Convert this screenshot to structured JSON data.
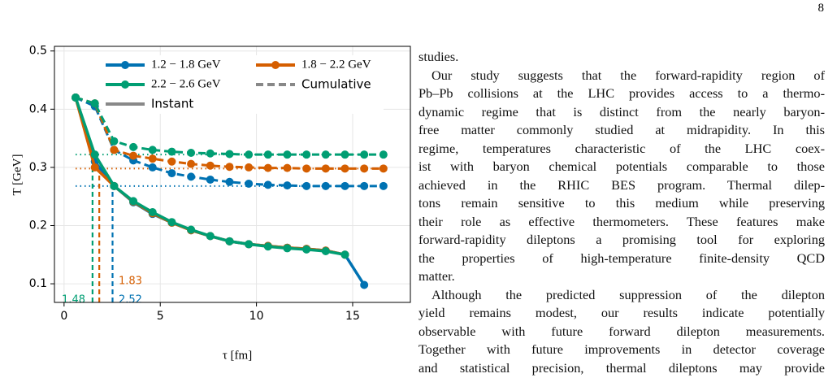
{
  "page_number": "8",
  "chart_data": {
    "type": "line",
    "x_label": "τ [fm]",
    "y_label": "T [GeV]",
    "x": [
      0.6,
      1.6,
      2.6,
      3.6,
      4.6,
      5.6,
      6.6,
      7.6,
      8.6,
      9.6,
      10.6,
      11.6,
      12.6,
      13.6,
      14.6,
      15.6,
      16.6
    ],
    "xlim": [
      -0.5,
      18
    ],
    "xticks": [
      0,
      5,
      10,
      15
    ],
    "ylim": [
      0.068,
      0.508
    ],
    "yticks": [
      0.1,
      0.2,
      0.3,
      0.4,
      0.5
    ],
    "grid": true,
    "legend_styles": {
      "instant": "Instant",
      "cumulative": "Cumulative",
      "color": "#888888"
    },
    "series": [
      {
        "name": "1.2 − 1.8 GeV",
        "color": "#0072b2",
        "instant": [
          0.42,
          0.31,
          0.268,
          0.24,
          0.22,
          0.205,
          0.192,
          0.182,
          0.173,
          0.168,
          0.165,
          0.162,
          0.16,
          0.157,
          0.15,
          0.098,
          null
        ],
        "cumulative": [
          0.42,
          0.405,
          0.33,
          0.312,
          0.3,
          0.29,
          0.284,
          0.279,
          0.275,
          0.272,
          0.27,
          0.269,
          0.268,
          0.268,
          0.268,
          0.268,
          0.268
        ],
        "level": 0.268,
        "crossing": 2.52
      },
      {
        "name": "1.8 − 2.2 GeV",
        "color": "#d55e00",
        "instant": [
          0.42,
          0.3,
          0.268,
          0.241,
          0.221,
          0.205,
          0.192,
          0.182,
          0.173,
          0.168,
          0.165,
          0.162,
          0.16,
          0.157,
          0.15,
          null,
          null
        ],
        "cumulative": [
          0.42,
          0.41,
          0.33,
          0.32,
          0.315,
          0.31,
          0.306,
          0.303,
          0.301,
          0.3,
          0.299,
          0.299,
          0.298,
          0.298,
          0.298,
          0.298,
          0.298
        ],
        "level": 0.298,
        "crossing": 1.83
      },
      {
        "name": "2.2 − 2.6 GeV",
        "color": "#009e73",
        "instant": [
          0.42,
          0.322,
          0.268,
          0.242,
          0.223,
          0.206,
          0.193,
          0.182,
          0.173,
          0.168,
          0.164,
          0.161,
          0.159,
          0.156,
          0.15,
          null,
          null
        ],
        "cumulative": [
          0.42,
          0.41,
          0.345,
          0.335,
          0.33,
          0.327,
          0.325,
          0.324,
          0.323,
          0.322,
          0.322,
          0.322,
          0.322,
          0.322,
          0.322,
          0.322,
          0.322
        ],
        "level": 0.322,
        "crossing": 1.48
      }
    ]
  },
  "text": {
    "paragraphs": [
      {
        "lines": [
          "studies."
        ]
      },
      {
        "lines": [
          "Our study suggests that the forward-rapidity region of",
          "Pb–Pb collisions at the LHC provides access to a thermo-",
          "dynamic regime that is distinct from the nearly baryon-",
          "free matter commonly studied at midrapidity. In this",
          "regime, temperatures characteristic of the LHC coex-",
          "ist with baryon chemical potentials comparable to those",
          "achieved in the RHIC BES program. Thermal dilep-",
          "tons remain sensitive to this medium while preserving",
          "their role as effective thermometers. These features make",
          "forward-rapidity dileptons a promising tool for exploring",
          "the properties of high-temperature finite-density QCD",
          "matter."
        ]
      },
      {
        "lines": [
          "Although the predicted suppression of the dilepton",
          "yield remains modest, our results indicate potentially",
          "observable with future forward dilepton measurements.",
          "Together with future improvements in detector coverage",
          "and statistical precision, thermal dileptons may provide"
        ]
      }
    ]
  }
}
